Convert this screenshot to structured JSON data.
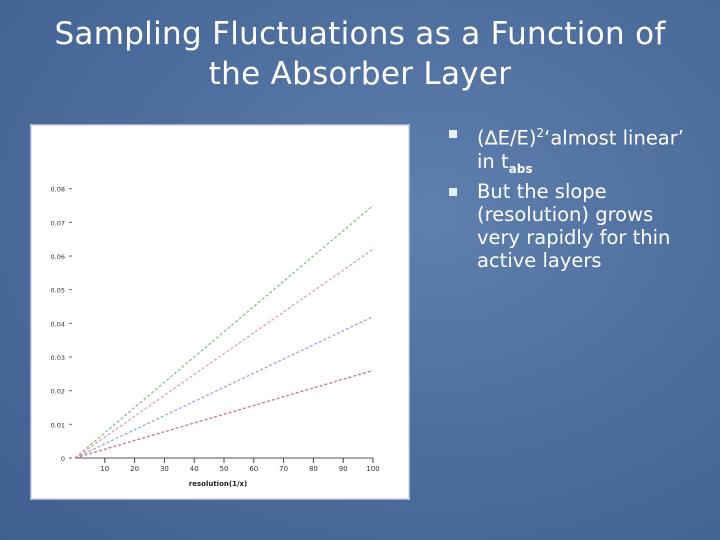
{
  "slide": {
    "title": "Sampling Fluctuations as a Function of the Absorber Layer"
  },
  "bullets": [
    {
      "before": "(∆E/E)",
      "sup": "2",
      "mid": "‘almost linear’ in t",
      "sub": "abs"
    },
    {
      "text": "But the slope (resolution) grows very rapidly for thin active layers"
    }
  ],
  "chart_data": {
    "type": "line",
    "title": "",
    "xlabel": "resolution(1/x)",
    "ylabel": "",
    "xlim": [
      0,
      100
    ],
    "ylim": [
      0,
      0.09
    ],
    "x_ticks": [
      "10",
      "20",
      "30",
      "40",
      "50",
      "60",
      "70",
      "80",
      "90",
      "100"
    ],
    "y_ticks": [
      "0",
      "0.01",
      "0.02",
      "0.03",
      "0.04",
      "0.05",
      "0.06",
      "0.07",
      "0.08"
    ],
    "series": [
      {
        "x": [
          0,
          100
        ],
        "y": [
          0,
          0.075
        ],
        "color": "#8cc08c"
      },
      {
        "x": [
          0,
          100
        ],
        "y": [
          0,
          0.062
        ],
        "color": "#e8a0a8"
      },
      {
        "x": [
          0,
          100
        ],
        "y": [
          0,
          0.042
        ],
        "color": "#9aa4e8"
      },
      {
        "x": [
          0,
          100
        ],
        "y": [
          0,
          0.026
        ],
        "color": "#d07090"
      }
    ]
  }
}
